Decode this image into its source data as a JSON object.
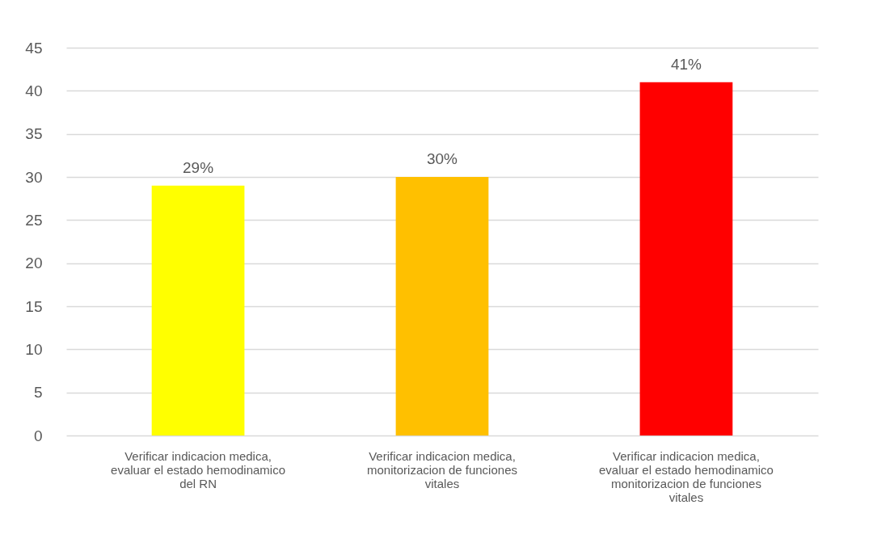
{
  "chart_data": {
    "type": "bar",
    "categories": [
      "Verificar indicacion medica, evaluar el estado hemodinamico del RN",
      "Verificar indicacion medica, monitorizacion de funciones vitales",
      "Verificar indicacion medica, evaluar el estado hemodinamico monitorizacion de funciones vitales"
    ],
    "values": [
      29,
      30,
      41
    ],
    "colors": [
      "#ffff00",
      "#ffc000",
      "#ff0000"
    ],
    "value_labels": [
      "29%",
      "30%",
      "41%"
    ],
    "ylim": [
      0,
      45
    ],
    "yticks": [
      0,
      5,
      10,
      15,
      20,
      25,
      30,
      35,
      40,
      45
    ],
    "grid": "y"
  }
}
